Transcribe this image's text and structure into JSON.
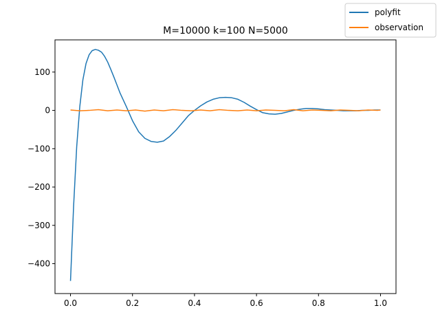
{
  "chart_data": {
    "type": "line",
    "title": "M=10000 k=100 N=5000",
    "xlabel": "",
    "ylabel": "",
    "xlim": [
      -0.05,
      1.05
    ],
    "ylim": [
      -478,
      184
    ],
    "xticks": [
      0.0,
      0.2,
      0.4,
      0.6,
      0.8,
      1.0
    ],
    "xtick_labels": [
      "0.0",
      "0.2",
      "0.4",
      "0.6",
      "0.8",
      "1.0"
    ],
    "yticks": [
      -400,
      -300,
      -200,
      -100,
      0,
      100
    ],
    "ytick_labels": [
      "−400",
      "−300",
      "−200",
      "−100",
      "0",
      "100"
    ],
    "grid": false,
    "legend_position": "top-right",
    "series": [
      {
        "name": "polyfit",
        "color": "#1f77b4",
        "x": [
          0.0,
          0.01,
          0.02,
          0.03,
          0.04,
          0.05,
          0.06,
          0.07,
          0.08,
          0.09,
          0.1,
          0.11,
          0.12,
          0.13,
          0.14,
          0.15,
          0.16,
          0.18,
          0.2,
          0.22,
          0.24,
          0.26,
          0.28,
          0.3,
          0.32,
          0.34,
          0.36,
          0.38,
          0.4,
          0.42,
          0.44,
          0.46,
          0.48,
          0.5,
          0.52,
          0.54,
          0.56,
          0.58,
          0.6,
          0.62,
          0.64,
          0.66,
          0.68,
          0.7,
          0.72,
          0.74,
          0.76,
          0.78,
          0.8,
          0.82,
          0.84,
          0.86,
          0.88,
          0.9,
          0.92,
          0.94,
          0.96,
          0.98,
          1.0
        ],
        "y": [
          -445,
          -250,
          -95,
          10,
          80,
          122,
          145,
          156,
          159,
          157,
          152,
          141,
          126,
          107,
          87,
          66,
          45,
          10,
          -27,
          -56,
          -73,
          -81,
          -83,
          -80,
          -68,
          -52,
          -33,
          -14,
          0,
          12,
          22,
          29,
          33,
          34,
          33,
          29,
          21,
          11,
          2,
          -6,
          -9,
          -10,
          -8,
          -4,
          0,
          3,
          5,
          5,
          4,
          2,
          1,
          0,
          -1,
          -1,
          -1,
          0,
          0,
          1,
          1
        ]
      },
      {
        "name": "observation",
        "color": "#ff7f0e",
        "x": [
          0.0,
          0.03,
          0.06,
          0.09,
          0.12,
          0.15,
          0.18,
          0.21,
          0.24,
          0.27,
          0.3,
          0.33,
          0.36,
          0.39,
          0.42,
          0.45,
          0.48,
          0.51,
          0.54,
          0.57,
          0.6,
          0.63,
          0.66,
          0.69,
          0.72,
          0.75,
          0.78,
          0.81,
          0.84,
          0.87,
          0.9,
          0.93,
          0.96,
          0.99,
          1.0
        ],
        "y": [
          1,
          -1,
          0,
          2,
          -1,
          1,
          -1,
          1,
          -2,
          1,
          -1,
          2,
          0,
          -1,
          1,
          -1,
          2,
          0,
          -1,
          1,
          -1,
          1,
          0,
          -1,
          2,
          -1,
          1,
          0,
          -1,
          1,
          0,
          -1,
          1,
          0,
          1
        ]
      }
    ]
  }
}
